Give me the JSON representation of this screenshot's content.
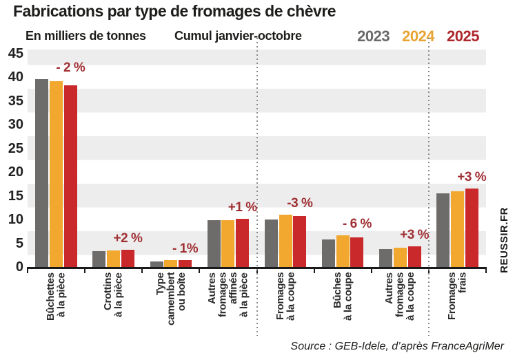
{
  "header": {
    "title": "Fabrications par type de fromages de chèvre",
    "unit_label": "En milliers de tonnes",
    "period_label": "Cumul janvier-octobre"
  },
  "legend": {
    "items": [
      {
        "label": "2023",
        "color": "#6a6868"
      },
      {
        "label": "2024",
        "color": "#e8a333"
      },
      {
        "label": "2025",
        "color": "#ad262b"
      }
    ]
  },
  "chart_data": {
    "type": "bar",
    "title": "Fabrications par type de fromages de chèvre",
    "unit_label": "En milliers de tonnes",
    "period_label": "Cumul janvier-octobre",
    "categories": [
      "Bûchettes à la pièce",
      "Crottins à la pièce",
      "Type camembert ou boîte",
      "Autres fromages affinés à la pièce",
      "Fromages à la coupe",
      "Bûches à la coupe",
      "Autres fromages à la coupe",
      "Fromages frais"
    ],
    "category_lines": [
      [
        "Bûchettes",
        "à la pièce"
      ],
      [
        "Crottins",
        "à la pièce"
      ],
      [
        "Type",
        "camembert",
        "ou boîte"
      ],
      [
        "Autres",
        "fromages",
        "affinés",
        "à la pièce"
      ],
      [
        "Fromages",
        "à la coupe"
      ],
      [
        "Bûches",
        "à la coupe"
      ],
      [
        "Autres",
        "fromages",
        "à la coupe"
      ],
      [
        "Fromages",
        "frais"
      ]
    ],
    "series": [
      {
        "name": "2023",
        "color": "#6e6c6a",
        "values": [
          39.6,
          3.3,
          1.1,
          9.8,
          10.0,
          5.8,
          3.7,
          15.5
        ]
      },
      {
        "name": "2024",
        "color": "#f2a72f",
        "values": [
          39.1,
          3.5,
          1.4,
          9.9,
          11.0,
          6.6,
          4.1,
          16.0
        ]
      },
      {
        "name": "2025",
        "color": "#c9292b",
        "values": [
          38.3,
          3.6,
          1.4,
          10.1,
          10.7,
          6.2,
          4.3,
          16.5
        ]
      }
    ],
    "change_labels": [
      "- 2 %",
      "+2 %",
      "- 1%",
      "+1 %",
      "-3 %",
      "- 6 %",
      "+3 %",
      "+3 %"
    ],
    "change_label_color": "#a02f33",
    "yticks": [
      0,
      5,
      10,
      15,
      20,
      25,
      30,
      35,
      40,
      45
    ],
    "ylim": [
      0,
      45
    ],
    "band_color": "#ededed",
    "grid": "alternating horizontal bands of 5 units",
    "legend_position": "top-right",
    "separators_after_categories": [
      4,
      7
    ]
  },
  "footer": {
    "source": "Source : GEB-Idele, d’après FranceAgriMer",
    "brand": "REUSSIR.FR"
  }
}
